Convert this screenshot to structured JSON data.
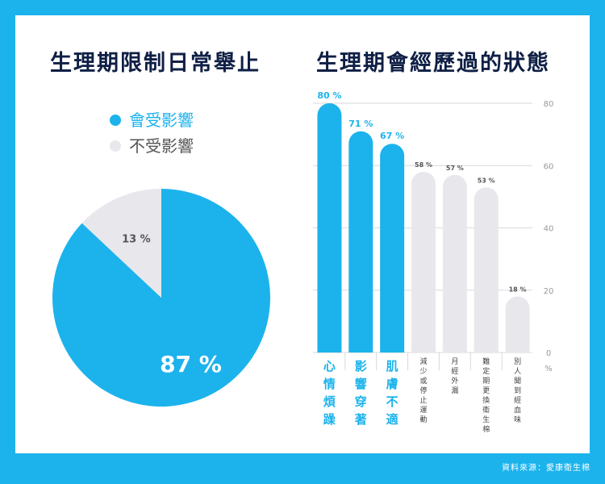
{
  "titles": {
    "left": "生理期限制日常舉止",
    "right": "生理期會經歷過的狀態"
  },
  "legend": [
    {
      "label": "會受影響",
      "color": "#1cb3ec"
    },
    {
      "label": "不受影響",
      "color": "#e8e8ec"
    }
  ],
  "source": "資料來源：愛康衛生棉",
  "chart_data": [
    {
      "type": "pie",
      "labels": [
        "會受影響",
        "不受影響"
      ],
      "values": [
        87,
        13
      ],
      "value_labels": [
        "87 %",
        "13 %"
      ],
      "colors": [
        "#1cb3ec",
        "#e8e8ec"
      ],
      "title": "生理期限制日常舉止"
    },
    {
      "type": "bar",
      "title": "生理期會經歷過的狀態",
      "categories": [
        "心情煩躁",
        "影響穿著",
        "肌膚不適",
        "減少或停止運動",
        "月經外漏",
        "難定期更換衛生棉",
        "別人聞到經血味"
      ],
      "values": [
        80,
        71,
        67,
        58,
        57,
        53,
        18
      ],
      "value_labels": [
        "80 %",
        "71 %",
        "67 %",
        "58 %",
        "57 %",
        "53 %",
        "18 %"
      ],
      "highlight": [
        true,
        true,
        true,
        false,
        false,
        false,
        false
      ],
      "ylim": [
        0,
        80
      ],
      "yticks": [
        "0",
        "20",
        "40",
        "60",
        "80"
      ],
      "yunit": "%",
      "grid": true,
      "colors": {
        "highlight": "#1cb3ec",
        "normal": "#e8e8ec"
      }
    }
  ]
}
